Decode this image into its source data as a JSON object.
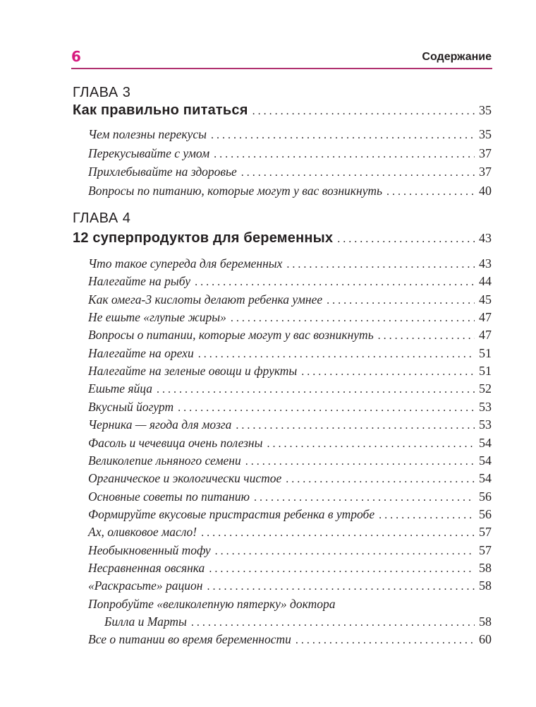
{
  "header": {
    "page_number": "6",
    "section_title": "Содержание",
    "accent_color": "#d6197f"
  },
  "chapters": [
    {
      "label": "ГЛАВА 3",
      "title": "Как правильно питаться",
      "page": "35",
      "entries": [
        {
          "title": "Чем полезны перекусы",
          "page": "35"
        },
        {
          "title": "Перекусывайте с умом",
          "page": "37"
        },
        {
          "title": "Прихлебывайте на здоровье",
          "page": "37"
        },
        {
          "title": "Вопросы по питанию, которые могут у вас возникнуть",
          "page": "40"
        }
      ]
    },
    {
      "label": "ГЛАВА 4",
      "title": "12 суперпродуктов для беременных",
      "page": "43",
      "entries": [
        {
          "title": "Что такое супереда для беременных",
          "page": "43"
        },
        {
          "title": "Налегайте на рыбу",
          "page": "44"
        },
        {
          "title": "Как омега-3 кислоты делают ребенка умнее",
          "page": "45"
        },
        {
          "title": "Не ешьте «глупые жиры»",
          "page": "47"
        },
        {
          "title": "Вопросы о питании, которые могут у вас возникнуть",
          "page": "47"
        },
        {
          "title": "Налегайте на орехи",
          "page": "51"
        },
        {
          "title": "Налегайте на зеленые овощи и фрукты",
          "page": "51"
        },
        {
          "title": "Ешьте яйца",
          "page": "52"
        },
        {
          "title": "Вкусный йогурт",
          "page": "53"
        },
        {
          "title": "Черника — ягода для мозга",
          "page": "53"
        },
        {
          "title": "Фасоль и чечевица очень полезны",
          "page": "54"
        },
        {
          "title": "Великолепие льняного семени",
          "page": "54"
        },
        {
          "title": "Органическое и экологически чистое",
          "page": "54"
        },
        {
          "title": "Основные советы по питанию",
          "page": "56"
        },
        {
          "title": "Формируйте вкусовые пристрастия ребенка в утробе",
          "page": "56"
        },
        {
          "title": "Ах, оливковое масло!",
          "page": "57"
        },
        {
          "title": "Необыкновенный тофу",
          "page": "57"
        },
        {
          "title": "Несравненная овсянка",
          "page": "58"
        },
        {
          "title": "«Раскрасьте» рацион",
          "page": "58"
        },
        {
          "title": "Попробуйте «великолепную пятерку» доктора",
          "title_cont": "Билла и Марты",
          "page": "58"
        },
        {
          "title": "Все о питании во время беременности",
          "page": "60"
        }
      ]
    }
  ]
}
